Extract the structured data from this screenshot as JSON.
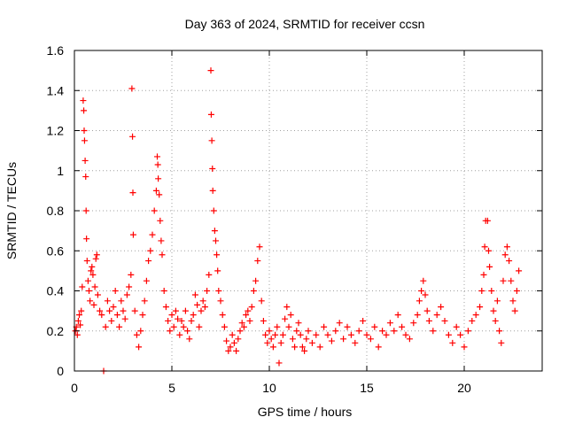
{
  "chart_data": {
    "type": "scatter",
    "title": "Day 363 of 2024, SRMTID for receiver ccsn",
    "xlabel": "GPS time / hours",
    "ylabel": "SRMTID / TECUs",
    "xlim": [
      0,
      24
    ],
    "ylim": [
      0,
      1.6
    ],
    "xticks": [
      0,
      5,
      10,
      15,
      20
    ],
    "xtick_labels": [
      "0",
      "5",
      "10",
      "15",
      "20"
    ],
    "yticks": [
      0,
      0.2,
      0.4,
      0.6,
      0.8,
      1.0,
      1.2,
      1.4,
      1.6
    ],
    "ytick_labels": [
      "0",
      "0.2",
      "0.4",
      "0.6",
      "0.8",
      "1",
      "1.2",
      "1.4",
      "1.6"
    ],
    "grid": true,
    "marker": "plus",
    "color": "#ff0000",
    "series": [
      {
        "name": "SRMTID",
        "points": [
          [
            0.05,
            0.2
          ],
          [
            0.1,
            0.22
          ],
          [
            0.15,
            0.18
          ],
          [
            0.2,
            0.25
          ],
          [
            0.25,
            0.28
          ],
          [
            0.3,
            0.23
          ],
          [
            0.35,
            0.3
          ],
          [
            0.4,
            0.42
          ],
          [
            0.45,
            1.35
          ],
          [
            0.48,
            1.3
          ],
          [
            0.5,
            1.2
          ],
          [
            0.52,
            1.15
          ],
          [
            0.55,
            1.05
          ],
          [
            0.58,
            0.97
          ],
          [
            0.6,
            0.8
          ],
          [
            0.62,
            0.66
          ],
          [
            0.65,
            0.55
          ],
          [
            0.7,
            0.45
          ],
          [
            0.75,
            0.4
          ],
          [
            0.8,
            0.35
          ],
          [
            0.85,
            0.5
          ],
          [
            0.9,
            0.52
          ],
          [
            0.95,
            0.48
          ],
          [
            1.0,
            0.33
          ],
          [
            1.05,
            0.42
          ],
          [
            1.1,
            0.56
          ],
          [
            1.15,
            0.58
          ],
          [
            1.2,
            0.38
          ],
          [
            1.3,
            0.3
          ],
          [
            1.4,
            0.28
          ],
          [
            1.5,
            0.0
          ],
          [
            1.6,
            0.22
          ],
          [
            1.7,
            0.35
          ],
          [
            1.8,
            0.3
          ],
          [
            1.9,
            0.25
          ],
          [
            2.0,
            0.32
          ],
          [
            2.1,
            0.4
          ],
          [
            2.2,
            0.28
          ],
          [
            2.3,
            0.22
          ],
          [
            2.4,
            0.35
          ],
          [
            2.5,
            0.3
          ],
          [
            2.6,
            0.26
          ],
          [
            2.7,
            0.38
          ],
          [
            2.8,
            0.42
          ],
          [
            2.9,
            0.48
          ],
          [
            2.95,
            1.41
          ],
          [
            2.98,
            1.17
          ],
          [
            3.0,
            0.89
          ],
          [
            3.02,
            0.68
          ],
          [
            3.1,
            0.3
          ],
          [
            3.2,
            0.18
          ],
          [
            3.3,
            0.12
          ],
          [
            3.4,
            0.2
          ],
          [
            3.5,
            0.28
          ],
          [
            3.6,
            0.35
          ],
          [
            3.7,
            0.45
          ],
          [
            3.8,
            0.55
          ],
          [
            3.9,
            0.6
          ],
          [
            4.0,
            0.68
          ],
          [
            4.1,
            0.8
          ],
          [
            4.2,
            0.9
          ],
          [
            4.25,
            1.07
          ],
          [
            4.28,
            1.03
          ],
          [
            4.3,
            0.96
          ],
          [
            4.35,
            0.88
          ],
          [
            4.4,
            0.75
          ],
          [
            4.45,
            0.65
          ],
          [
            4.5,
            0.58
          ],
          [
            4.6,
            0.4
          ],
          [
            4.7,
            0.32
          ],
          [
            4.8,
            0.25
          ],
          [
            4.9,
            0.2
          ],
          [
            5.0,
            0.28
          ],
          [
            5.1,
            0.22
          ],
          [
            5.2,
            0.3
          ],
          [
            5.3,
            0.26
          ],
          [
            5.4,
            0.18
          ],
          [
            5.5,
            0.25
          ],
          [
            5.6,
            0.22
          ],
          [
            5.7,
            0.3
          ],
          [
            5.8,
            0.2
          ],
          [
            5.9,
            0.16
          ],
          [
            6.0,
            0.25
          ],
          [
            6.1,
            0.28
          ],
          [
            6.2,
            0.38
          ],
          [
            6.3,
            0.33
          ],
          [
            6.4,
            0.22
          ],
          [
            6.5,
            0.3
          ],
          [
            6.6,
            0.35
          ],
          [
            6.7,
            0.32
          ],
          [
            6.8,
            0.4
          ],
          [
            6.9,
            0.48
          ],
          [
            7.0,
            1.5
          ],
          [
            7.02,
            1.28
          ],
          [
            7.05,
            1.15
          ],
          [
            7.08,
            1.01
          ],
          [
            7.1,
            0.9
          ],
          [
            7.15,
            0.8
          ],
          [
            7.2,
            0.7
          ],
          [
            7.25,
            0.65
          ],
          [
            7.3,
            0.58
          ],
          [
            7.35,
            0.5
          ],
          [
            7.4,
            0.4
          ],
          [
            7.5,
            0.35
          ],
          [
            7.6,
            0.28
          ],
          [
            7.7,
            0.22
          ],
          [
            7.8,
            0.15
          ],
          [
            7.9,
            0.1
          ],
          [
            8.0,
            0.12
          ],
          [
            8.1,
            0.18
          ],
          [
            8.2,
            0.14
          ],
          [
            8.3,
            0.1
          ],
          [
            8.4,
            0.16
          ],
          [
            8.5,
            0.2
          ],
          [
            8.6,
            0.24
          ],
          [
            8.7,
            0.22
          ],
          [
            8.8,
            0.28
          ],
          [
            8.9,
            0.3
          ],
          [
            9.0,
            0.25
          ],
          [
            9.1,
            0.32
          ],
          [
            9.2,
            0.4
          ],
          [
            9.3,
            0.45
          ],
          [
            9.4,
            0.55
          ],
          [
            9.5,
            0.62
          ],
          [
            9.6,
            0.35
          ],
          [
            9.7,
            0.25
          ],
          [
            9.8,
            0.18
          ],
          [
            9.9,
            0.14
          ],
          [
            10.0,
            0.2
          ],
          [
            10.1,
            0.16
          ],
          [
            10.2,
            0.12
          ],
          [
            10.3,
            0.18
          ],
          [
            10.4,
            0.22
          ],
          [
            10.5,
            0.04
          ],
          [
            10.6,
            0.14
          ],
          [
            10.7,
            0.18
          ],
          [
            10.8,
            0.26
          ],
          [
            10.9,
            0.32
          ],
          [
            11.0,
            0.22
          ],
          [
            11.1,
            0.28
          ],
          [
            11.2,
            0.16
          ],
          [
            11.3,
            0.12
          ],
          [
            11.4,
            0.2
          ],
          [
            11.5,
            0.24
          ],
          [
            11.6,
            0.18
          ],
          [
            11.7,
            0.12
          ],
          [
            11.8,
            0.1
          ],
          [
            11.9,
            0.16
          ],
          [
            12.0,
            0.2
          ],
          [
            12.2,
            0.14
          ],
          [
            12.4,
            0.18
          ],
          [
            12.6,
            0.12
          ],
          [
            12.8,
            0.22
          ],
          [
            13.0,
            0.18
          ],
          [
            13.2,
            0.15
          ],
          [
            13.4,
            0.2
          ],
          [
            13.6,
            0.24
          ],
          [
            13.8,
            0.16
          ],
          [
            14.0,
            0.22
          ],
          [
            14.2,
            0.18
          ],
          [
            14.4,
            0.14
          ],
          [
            14.6,
            0.2
          ],
          [
            14.8,
            0.25
          ],
          [
            15.0,
            0.18
          ],
          [
            15.2,
            0.16
          ],
          [
            15.4,
            0.22
          ],
          [
            15.6,
            0.12
          ],
          [
            15.8,
            0.2
          ],
          [
            16.0,
            0.18
          ],
          [
            16.2,
            0.24
          ],
          [
            16.4,
            0.2
          ],
          [
            16.6,
            0.28
          ],
          [
            16.8,
            0.22
          ],
          [
            17.0,
            0.18
          ],
          [
            17.2,
            0.16
          ],
          [
            17.4,
            0.24
          ],
          [
            17.6,
            0.28
          ],
          [
            17.7,
            0.35
          ],
          [
            17.8,
            0.4
          ],
          [
            17.9,
            0.45
          ],
          [
            18.0,
            0.38
          ],
          [
            18.1,
            0.3
          ],
          [
            18.2,
            0.25
          ],
          [
            18.4,
            0.2
          ],
          [
            18.6,
            0.28
          ],
          [
            18.8,
            0.32
          ],
          [
            19.0,
            0.25
          ],
          [
            19.2,
            0.18
          ],
          [
            19.4,
            0.14
          ],
          [
            19.6,
            0.22
          ],
          [
            19.8,
            0.18
          ],
          [
            20.0,
            0.12
          ],
          [
            20.2,
            0.2
          ],
          [
            20.4,
            0.25
          ],
          [
            20.6,
            0.28
          ],
          [
            20.8,
            0.32
          ],
          [
            20.9,
            0.4
          ],
          [
            21.0,
            0.48
          ],
          [
            21.05,
            0.62
          ],
          [
            21.1,
            0.75
          ],
          [
            21.2,
            0.75
          ],
          [
            21.25,
            0.6
          ],
          [
            21.3,
            0.52
          ],
          [
            21.4,
            0.4
          ],
          [
            21.5,
            0.3
          ],
          [
            21.6,
            0.25
          ],
          [
            21.7,
            0.35
          ],
          [
            21.8,
            0.2
          ],
          [
            21.9,
            0.14
          ],
          [
            22.0,
            0.45
          ],
          [
            22.1,
            0.58
          ],
          [
            22.2,
            0.62
          ],
          [
            22.3,
            0.55
          ],
          [
            22.4,
            0.45
          ],
          [
            22.5,
            0.35
          ],
          [
            22.6,
            0.3
          ],
          [
            22.7,
            0.4
          ],
          [
            22.8,
            0.5
          ]
        ]
      }
    ]
  }
}
